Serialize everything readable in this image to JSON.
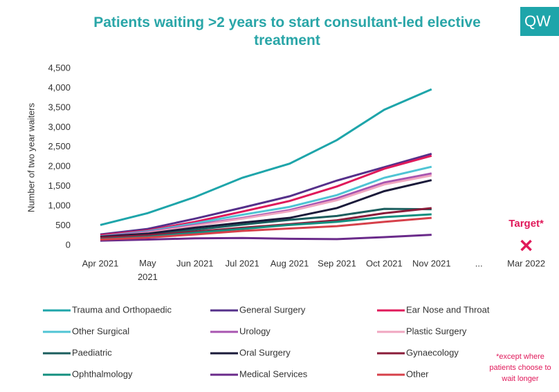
{
  "chart_data": {
    "type": "line",
    "title": "Patients waiting >2 years to start consultant-led elective treatment",
    "logo": "QW",
    "y_label": "Number of two year waiters",
    "categories": [
      "Apr 2021",
      "May 2021",
      "Jun 2021",
      "Jul 2021",
      "Aug 2021",
      "Sep 2021",
      "Oct 2021",
      "Nov 2021",
      "...",
      "Mar 2022"
    ],
    "ylim": [
      0,
      4500
    ],
    "yticks": [
      0,
      500,
      {
        "value": 1000,
        "label": "1,000"
      },
      {
        "value": 1500,
        "label": "1,500"
      },
      {
        "value": 2000,
        "label": "2,000"
      },
      {
        "value": 2500,
        "label": "2,500"
      },
      {
        "value": 3000,
        "label": "3,000"
      },
      {
        "value": 3500,
        "label": "3,500"
      },
      {
        "value": 4000,
        "label": "4,000"
      },
      {
        "value": 4500,
        "label": "4,500"
      }
    ],
    "grid": false,
    "series": [
      {
        "name": "Trauma and Orthopaedic",
        "color": "#1ea5aa",
        "values": [
          520,
          820,
          1230,
          1720,
          2080,
          2680,
          3450,
          3970,
          null,
          null
        ]
      },
      {
        "name": "General Surgery",
        "color": "#55308a",
        "values": [
          280,
          420,
          680,
          960,
          1250,
          1650,
          1990,
          2330,
          null,
          null
        ]
      },
      {
        "name": "Ear Nose and Throat",
        "color": "#e0195a",
        "values": [
          260,
          380,
          600,
          860,
          1130,
          1500,
          1950,
          2280,
          null,
          null
        ]
      },
      {
        "name": "Other Surgical",
        "color": "#4fc4d4",
        "values": [
          230,
          360,
          560,
          780,
          980,
          1280,
          1720,
          2000,
          null,
          null
        ]
      },
      {
        "name": "Urology",
        "color": "#a855b0",
        "values": [
          220,
          340,
          520,
          700,
          900,
          1200,
          1600,
          1830,
          null,
          null
        ]
      },
      {
        "name": "Plastic Surgery",
        "color": "#f0a6c0",
        "values": [
          200,
          320,
          500,
          680,
          870,
          1150,
          1550,
          1780,
          null,
          null
        ]
      },
      {
        "name": "Paediatric",
        "color": "#1b5e5e",
        "values": [
          200,
          280,
          400,
          530,
          650,
          750,
          930,
          920,
          null,
          null
        ]
      },
      {
        "name": "Oral Surgery",
        "color": "#1a1a3a",
        "values": [
          220,
          300,
          450,
          580,
          700,
          950,
          1380,
          1660,
          null,
          null
        ]
      },
      {
        "name": "Gynaecology",
        "color": "#8a1c3a",
        "values": [
          200,
          260,
          350,
          450,
          540,
          640,
          820,
          950,
          null,
          null
        ]
      },
      {
        "name": "Ophthalmology",
        "color": "#138f7f",
        "values": [
          160,
          220,
          320,
          420,
          520,
          600,
          720,
          790,
          null,
          null
        ]
      },
      {
        "name": "Medical Services",
        "color": "#6a2a8a",
        "values": [
          120,
          150,
          180,
          190,
          170,
          160,
          210,
          270,
          null,
          null
        ]
      },
      {
        "name": "Other",
        "color": "#d6404a",
        "values": [
          150,
          200,
          280,
          370,
          430,
          490,
          600,
          700,
          null,
          null
        ]
      }
    ],
    "target": {
      "label": "Target*",
      "value": 0,
      "color": "#e0195a"
    },
    "footnote": "*except where patients choose to wait longer"
  }
}
